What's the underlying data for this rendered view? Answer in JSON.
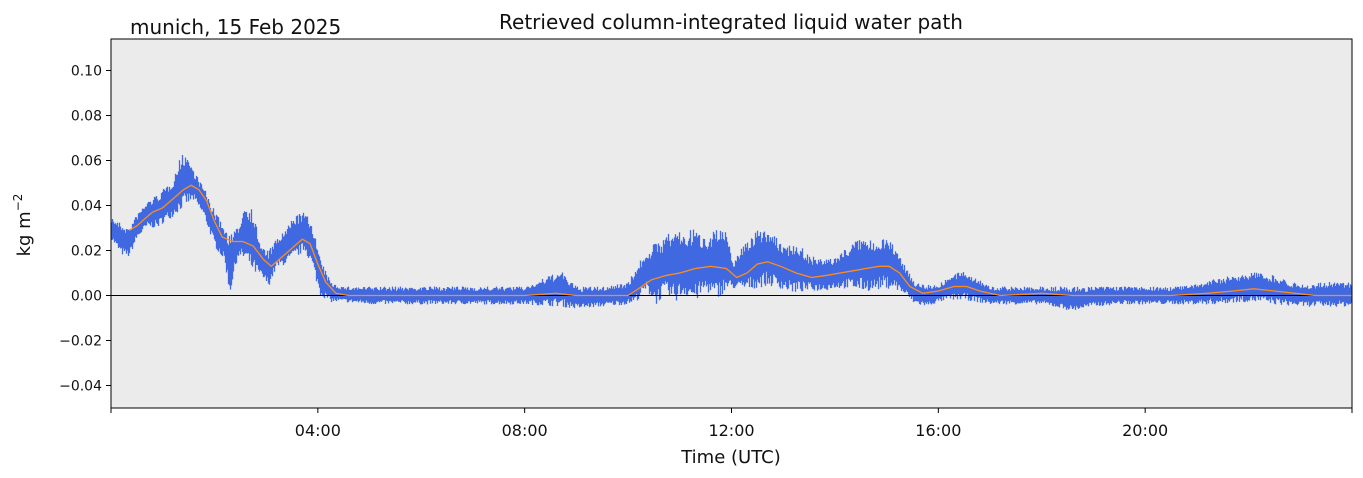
{
  "chart_data": {
    "type": "scatter",
    "location_date": "munich, 15 Feb 2025",
    "title": "Retrieved column-integrated liquid water path",
    "xlabel": "Time (UTC)",
    "ylabel_base": "kg m",
    "ylabel_exp": "−2",
    "xlim_hours": [
      0,
      24
    ],
    "ylim": [
      -0.05,
      0.114
    ],
    "x_ticks": [
      {
        "hour": 4,
        "label": "04:00"
      },
      {
        "hour": 8,
        "label": "08:00"
      },
      {
        "hour": 12,
        "label": "12:00"
      },
      {
        "hour": 16,
        "label": "16:00"
      },
      {
        "hour": 20,
        "label": "20:00"
      }
    ],
    "y_ticks": [
      {
        "value": -0.04,
        "label": "−0.04"
      },
      {
        "value": -0.02,
        "label": "−0.02"
      },
      {
        "value": 0.0,
        "label": "0.00"
      },
      {
        "value": 0.02,
        "label": "0.02"
      },
      {
        "value": 0.04,
        "label": "0.04"
      },
      {
        "value": 0.06,
        "label": "0.06"
      },
      {
        "value": 0.08,
        "label": "0.08"
      },
      {
        "value": 0.1,
        "label": "0.10"
      }
    ],
    "grid": false,
    "zero_line": true,
    "background_color": "#ebebeb",
    "series": [
      {
        "kind": "scatter-band",
        "color": "#4169e1",
        "points": [
          {
            "x": 0.0,
            "lo": 0.025,
            "hi": 0.035
          },
          {
            "x": 0.2,
            "lo": 0.018,
            "hi": 0.032
          },
          {
            "x": 0.35,
            "lo": 0.017,
            "hi": 0.03
          },
          {
            "x": 0.5,
            "lo": 0.025,
            "hi": 0.036
          },
          {
            "x": 0.7,
            "lo": 0.03,
            "hi": 0.042
          },
          {
            "x": 0.9,
            "lo": 0.03,
            "hi": 0.045
          },
          {
            "x": 1.0,
            "lo": 0.032,
            "hi": 0.047
          },
          {
            "x": 1.2,
            "lo": 0.035,
            "hi": 0.052
          },
          {
            "x": 1.35,
            "lo": 0.038,
            "hi": 0.062
          },
          {
            "x": 1.45,
            "lo": 0.04,
            "hi": 0.064
          },
          {
            "x": 1.6,
            "lo": 0.042,
            "hi": 0.056
          },
          {
            "x": 1.8,
            "lo": 0.035,
            "hi": 0.048
          },
          {
            "x": 2.0,
            "lo": 0.022,
            "hi": 0.038
          },
          {
            "x": 2.2,
            "lo": 0.015,
            "hi": 0.03
          },
          {
            "x": 2.3,
            "lo": 0.0,
            "hi": 0.027
          },
          {
            "x": 2.45,
            "lo": 0.017,
            "hi": 0.03
          },
          {
            "x": 2.6,
            "lo": 0.015,
            "hi": 0.042
          },
          {
            "x": 2.75,
            "lo": 0.01,
            "hi": 0.038
          },
          {
            "x": 2.9,
            "lo": 0.008,
            "hi": 0.022
          },
          {
            "x": 3.05,
            "lo": 0.004,
            "hi": 0.02
          },
          {
            "x": 3.2,
            "lo": 0.012,
            "hi": 0.025
          },
          {
            "x": 3.4,
            "lo": 0.014,
            "hi": 0.03
          },
          {
            "x": 3.55,
            "lo": 0.016,
            "hi": 0.036
          },
          {
            "x": 3.75,
            "lo": 0.02,
            "hi": 0.037
          },
          {
            "x": 3.9,
            "lo": 0.012,
            "hi": 0.032
          },
          {
            "x": 4.05,
            "lo": 0.0,
            "hi": 0.016
          },
          {
            "x": 4.25,
            "lo": -0.003,
            "hi": 0.006
          },
          {
            "x": 4.5,
            "lo": -0.003,
            "hi": 0.004
          },
          {
            "x": 5.0,
            "lo": -0.004,
            "hi": 0.004
          },
          {
            "x": 6.0,
            "lo": -0.004,
            "hi": 0.004
          },
          {
            "x": 7.0,
            "lo": -0.004,
            "hi": 0.004
          },
          {
            "x": 8.0,
            "lo": -0.004,
            "hi": 0.004
          },
          {
            "x": 8.7,
            "lo": -0.005,
            "hi": 0.011
          },
          {
            "x": 9.0,
            "lo": -0.006,
            "hi": 0.004
          },
          {
            "x": 9.5,
            "lo": -0.005,
            "hi": 0.004
          },
          {
            "x": 10.0,
            "lo": -0.004,
            "hi": 0.006
          },
          {
            "x": 10.15,
            "lo": -0.003,
            "hi": 0.012
          },
          {
            "x": 10.35,
            "lo": 0.002,
            "hi": 0.02
          },
          {
            "x": 10.55,
            "lo": -0.004,
            "hi": 0.024
          },
          {
            "x": 10.7,
            "lo": 0.0,
            "hi": 0.026
          },
          {
            "x": 10.9,
            "lo": -0.003,
            "hi": 0.03
          },
          {
            "x": 11.1,
            "lo": 0.0,
            "hi": 0.028
          },
          {
            "x": 11.3,
            "lo": -0.003,
            "hi": 0.03
          },
          {
            "x": 11.5,
            "lo": 0.002,
            "hi": 0.026
          },
          {
            "x": 11.7,
            "lo": -0.002,
            "hi": 0.031
          },
          {
            "x": 11.9,
            "lo": 0.002,
            "hi": 0.028
          },
          {
            "x": 12.05,
            "lo": 0.003,
            "hi": 0.015
          },
          {
            "x": 12.25,
            "lo": 0.002,
            "hi": 0.024
          },
          {
            "x": 12.45,
            "lo": 0.003,
            "hi": 0.028
          },
          {
            "x": 12.65,
            "lo": 0.004,
            "hi": 0.031
          },
          {
            "x": 12.85,
            "lo": 0.004,
            "hi": 0.026
          },
          {
            "x": 13.05,
            "lo": 0.002,
            "hi": 0.022
          },
          {
            "x": 13.25,
            "lo": 0.001,
            "hi": 0.024
          },
          {
            "x": 13.5,
            "lo": 0.002,
            "hi": 0.018
          },
          {
            "x": 13.75,
            "lo": 0.002,
            "hi": 0.016
          },
          {
            "x": 14.0,
            "lo": 0.003,
            "hi": 0.017
          },
          {
            "x": 14.25,
            "lo": 0.003,
            "hi": 0.022
          },
          {
            "x": 14.5,
            "lo": 0.002,
            "hi": 0.026
          },
          {
            "x": 14.75,
            "lo": 0.002,
            "hi": 0.024
          },
          {
            "x": 14.95,
            "lo": 0.003,
            "hi": 0.027
          },
          {
            "x": 15.15,
            "lo": 0.003,
            "hi": 0.022
          },
          {
            "x": 15.35,
            "lo": 0.0,
            "hi": 0.014
          },
          {
            "x": 15.55,
            "lo": -0.004,
            "hi": 0.006
          },
          {
            "x": 15.8,
            "lo": -0.005,
            "hi": 0.005
          },
          {
            "x": 16.0,
            "lo": -0.003,
            "hi": 0.005
          },
          {
            "x": 16.25,
            "lo": -0.002,
            "hi": 0.009
          },
          {
            "x": 16.5,
            "lo": -0.002,
            "hi": 0.011
          },
          {
            "x": 16.75,
            "lo": -0.003,
            "hi": 0.008
          },
          {
            "x": 17.0,
            "lo": -0.004,
            "hi": 0.004
          },
          {
            "x": 17.5,
            "lo": -0.004,
            "hi": 0.004
          },
          {
            "x": 18.0,
            "lo": -0.004,
            "hi": 0.004
          },
          {
            "x": 18.6,
            "lo": -0.007,
            "hi": 0.004
          },
          {
            "x": 19.0,
            "lo": -0.005,
            "hi": 0.004
          },
          {
            "x": 19.5,
            "lo": -0.004,
            "hi": 0.004
          },
          {
            "x": 20.0,
            "lo": -0.004,
            "hi": 0.004
          },
          {
            "x": 20.5,
            "lo": -0.004,
            "hi": 0.004
          },
          {
            "x": 21.0,
            "lo": -0.004,
            "hi": 0.005
          },
          {
            "x": 21.4,
            "lo": -0.004,
            "hi": 0.008
          },
          {
            "x": 21.8,
            "lo": -0.003,
            "hi": 0.009
          },
          {
            "x": 22.1,
            "lo": -0.003,
            "hi": 0.011
          },
          {
            "x": 22.5,
            "lo": -0.004,
            "hi": 0.009
          },
          {
            "x": 23.0,
            "lo": -0.005,
            "hi": 0.005
          },
          {
            "x": 23.5,
            "lo": -0.005,
            "hi": 0.006
          },
          {
            "x": 24.0,
            "lo": -0.005,
            "hi": 0.006
          }
        ]
      },
      {
        "kind": "line",
        "color": "#ff8c1a",
        "points": [
          [
            0.35,
            0.029
          ],
          [
            0.5,
            0.031
          ],
          [
            0.65,
            0.034
          ],
          [
            0.8,
            0.037
          ],
          [
            1.0,
            0.039
          ],
          [
            1.2,
            0.043
          ],
          [
            1.4,
            0.047
          ],
          [
            1.55,
            0.049
          ],
          [
            1.7,
            0.047
          ],
          [
            1.85,
            0.042
          ],
          [
            2.0,
            0.033
          ],
          [
            2.15,
            0.026
          ],
          [
            2.35,
            0.024
          ],
          [
            2.55,
            0.024
          ],
          [
            2.75,
            0.022
          ],
          [
            2.95,
            0.016
          ],
          [
            3.1,
            0.013
          ],
          [
            3.3,
            0.017
          ],
          [
            3.5,
            0.021
          ],
          [
            3.7,
            0.025
          ],
          [
            3.85,
            0.023
          ],
          [
            4.0,
            0.014
          ],
          [
            4.15,
            0.006
          ],
          [
            4.35,
            0.001
          ],
          [
            4.6,
            0.0
          ],
          [
            6.0,
            0.0
          ],
          [
            8.0,
            0.0
          ],
          [
            8.6,
            0.001
          ],
          [
            9.0,
            0.0
          ],
          [
            10.0,
            0.0
          ],
          [
            10.2,
            0.003
          ],
          [
            10.45,
            0.007
          ],
          [
            10.75,
            0.009
          ],
          [
            11.0,
            0.01
          ],
          [
            11.3,
            0.012
          ],
          [
            11.6,
            0.013
          ],
          [
            11.9,
            0.012
          ],
          [
            12.1,
            0.008
          ],
          [
            12.3,
            0.01
          ],
          [
            12.5,
            0.014
          ],
          [
            12.7,
            0.015
          ],
          [
            12.95,
            0.013
          ],
          [
            13.25,
            0.01
          ],
          [
            13.55,
            0.008
          ],
          [
            13.85,
            0.009
          ],
          [
            14.1,
            0.01
          ],
          [
            14.35,
            0.011
          ],
          [
            14.6,
            0.012
          ],
          [
            14.85,
            0.013
          ],
          [
            15.05,
            0.013
          ],
          [
            15.25,
            0.01
          ],
          [
            15.45,
            0.004
          ],
          [
            15.7,
            0.001
          ],
          [
            16.0,
            0.002
          ],
          [
            16.3,
            0.004
          ],
          [
            16.55,
            0.004
          ],
          [
            16.8,
            0.002
          ],
          [
            17.2,
            0.0
          ],
          [
            18.0,
            0.001
          ],
          [
            18.6,
            0.0
          ],
          [
            19.5,
            0.0
          ],
          [
            20.5,
            0.0
          ],
          [
            21.2,
            0.001
          ],
          [
            21.7,
            0.002
          ],
          [
            22.1,
            0.003
          ],
          [
            22.5,
            0.002
          ],
          [
            22.9,
            0.001
          ],
          [
            23.3,
            0.0
          ],
          [
            24.0,
            0.0
          ]
        ]
      }
    ]
  }
}
